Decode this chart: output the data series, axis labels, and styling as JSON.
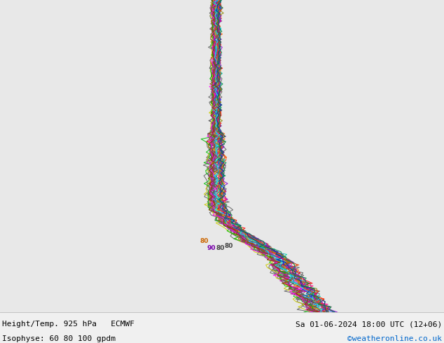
{
  "title_left_line1": "Height/Temp. 925 hPa   ECMWF",
  "title_left_line2": "Isophyse: 60 80 100 gpdm",
  "title_right_line1": "Sa 01-06-2024 18:00 UTC (12+06)",
  "title_right_line2": "©weatheronline.co.uk",
  "title_right_line2_color": "#0066cc",
  "bg_land_color": "#c8f5a0",
  "bg_sea_color": "#e8e8e8",
  "border_color": "#909090",
  "figsize": [
    6.34,
    4.9
  ],
  "dpi": 100,
  "map_extent": [
    -11,
    25,
    43,
    62
  ],
  "spaghetti_colors": [
    "#606060",
    "#606060",
    "#606060",
    "#606060",
    "#606060",
    "#606060",
    "#606060",
    "#606060",
    "#606060",
    "#606060",
    "#606060",
    "#606060",
    "#606060",
    "#606060",
    "#606060",
    "#606060",
    "#606060",
    "#606060",
    "#606060",
    "#606060",
    "#ff0000",
    "#cc3300",
    "#ff6600",
    "#ffaa00",
    "#cccc00",
    "#00bb00",
    "#00ccaa",
    "#00aaff",
    "#0044ff",
    "#4400cc",
    "#8800cc",
    "#cc00aa",
    "#ff00ff",
    "#ff0088",
    "#00ffff",
    "#ff4400",
    "#888800",
    "#004488",
    "#884400",
    "#008844"
  ],
  "n_lines": 40,
  "seed": 12,
  "label_80_color_orange": "#cc6600",
  "label_80_color_purple": "#7700aa",
  "label_80_color_gray": "#444444",
  "text_font_size": 8.0
}
